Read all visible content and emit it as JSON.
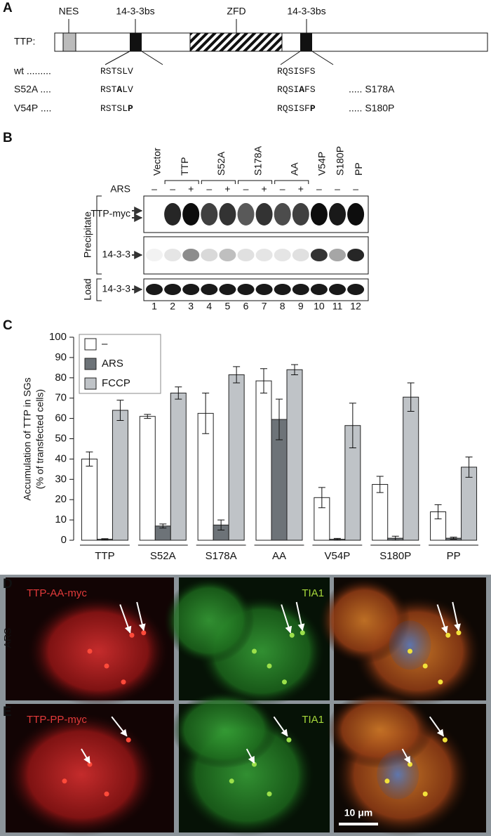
{
  "panel_a": {
    "label": "A",
    "protein": "TTP:",
    "domains": [
      "NES",
      "14-3-3bs",
      "ZFD",
      "14-3-3bs"
    ],
    "rows": [
      {
        "name": "wt .........",
        "site1": [
          {
            "text": "RSTSLV"
          }
        ],
        "site2": [
          {
            "text": "RQSISFS"
          }
        ]
      },
      {
        "name": "S52A ....",
        "site1": [
          {
            "text": "RST"
          },
          {
            "text": "A",
            "bold": true
          },
          {
            "text": "LV"
          }
        ],
        "site2": [
          {
            "text": "RQSI"
          },
          {
            "text": "A",
            "bold": true
          },
          {
            "text": "FS"
          }
        ],
        "suffix": "..... S178A"
      },
      {
        "name": "V54P ....",
        "site1": [
          {
            "text": "RSTSL"
          },
          {
            "text": "P",
            "bold": true
          }
        ],
        "site2": [
          {
            "text": "RQSISF"
          },
          {
            "text": "P",
            "bold": true
          }
        ],
        "suffix": "..... S180P"
      }
    ]
  },
  "panel_b": {
    "label": "B",
    "lanes": [
      "Vector",
      "TTP",
      "S52A",
      "S178A",
      "AA",
      "V54P",
      "S180P",
      "PP"
    ],
    "treatment": "ARS",
    "treatment_signs": [
      "–",
      "–",
      "+",
      "–",
      "+",
      "–",
      "+",
      "–",
      "+",
      "–",
      "–",
      "–"
    ],
    "groups": [
      "Precipitate",
      "Load"
    ],
    "rows": [
      "TTP-myc",
      "14-3-3",
      "14-3-3"
    ],
    "lane_numbers": [
      1,
      2,
      3,
      4,
      5,
      6,
      7,
      8,
      9,
      10,
      11,
      12
    ]
  },
  "chart_data": {
    "type": "bar",
    "label": "C",
    "ylabel": [
      "Accumulation of TTP in SGs",
      "(% of transfected cells)"
    ],
    "categories": [
      "TTP",
      "S52A",
      "S178A",
      "AA",
      "V54P",
      "S180P",
      "PP"
    ],
    "series": [
      {
        "name": "–",
        "color": "#ffffff",
        "values": [
          40,
          61,
          62.5,
          78.5,
          21,
          27.5,
          14
        ],
        "errors": [
          3.5,
          1,
          10,
          6,
          5,
          4,
          3.5
        ]
      },
      {
        "name": "ARS",
        "color": "#6d7378",
        "values": [
          0.5,
          7,
          7.5,
          59.5,
          0.5,
          1,
          1
        ],
        "errors": [
          0.3,
          1,
          2.5,
          10,
          0.4,
          1,
          0.5
        ]
      },
      {
        "name": "FCCP",
        "color": "#bfc3c7",
        "values": [
          64,
          72.5,
          81.5,
          84,
          56.5,
          70.5,
          36
        ],
        "errors": [
          5,
          3,
          4,
          2.5,
          11,
          7,
          5
        ]
      }
    ],
    "ylim": [
      0,
      100
    ],
    "yticks": [
      0,
      10,
      20,
      30,
      40,
      50,
      60,
      70,
      80,
      90,
      100
    ],
    "legend": "upper left"
  },
  "panel_d": {
    "label": "D",
    "condition": "ARS",
    "channels": [
      "TTP-AA-myc",
      "TIA1"
    ]
  },
  "panel_e": {
    "label": "E",
    "channels": [
      "TTP-PP-myc",
      "TIA1"
    ],
    "scale_bar": "10 μm"
  }
}
